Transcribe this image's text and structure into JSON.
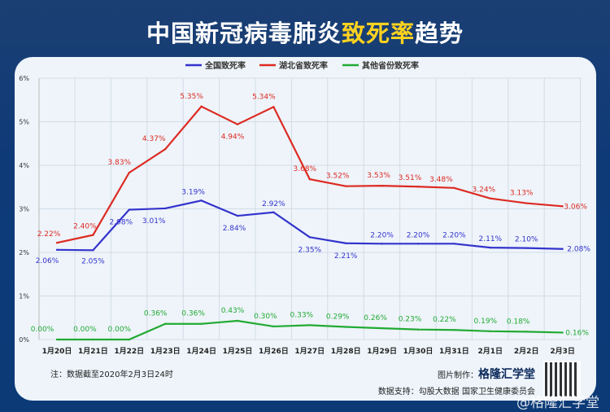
{
  "title": {
    "part1": "中国新冠病毒肺炎",
    "highlight": "致死率",
    "part2": "趋势"
  },
  "chart_data": {
    "type": "line",
    "categories": [
      "1月20日",
      "1月21日",
      "1月22日",
      "1月23日",
      "1月24日",
      "1月25日",
      "1月26日",
      "1月27日",
      "1月28日",
      "1月29日",
      "1月30日",
      "1月31日",
      "2月1日",
      "2月2日",
      "2月3日"
    ],
    "ylim": [
      0,
      6
    ],
    "yticks": [
      "0%",
      "1%",
      "2%",
      "3%",
      "4%",
      "5%",
      "6%"
    ],
    "grid": true,
    "legend_position": "top",
    "series": [
      {
        "name": "全国致死率",
        "color": "#3333cc",
        "values": [
          2.06,
          2.05,
          2.98,
          3.01,
          3.19,
          2.84,
          2.92,
          2.35,
          2.21,
          2.2,
          2.2,
          2.2,
          2.11,
          2.1,
          2.08
        ],
        "labels": [
          "2.06%",
          "2.05%",
          "2.98%",
          "3.01%",
          "3.19%",
          "2.84%",
          "2.92%",
          "2.35%",
          "2.21%",
          "2.20%",
          "2.20%",
          "2.20%",
          "2.11%",
          "2.10%",
          "2.08%"
        ]
      },
      {
        "name": "湖北省致死率",
        "color": "#dd2a22",
        "values": [
          2.22,
          2.4,
          3.83,
          4.37,
          5.35,
          4.94,
          5.34,
          3.68,
          3.52,
          3.53,
          3.51,
          3.48,
          3.24,
          3.13,
          3.06
        ],
        "labels": [
          "2.22%",
          "2.40%",
          "3.83%",
          "4.37%",
          "5.35%",
          "4.94%",
          "5.34%",
          "3.68%",
          "3.52%",
          "3.53%",
          "3.51%",
          "3.48%",
          "3.24%",
          "3.13%",
          "3.06%"
        ]
      },
      {
        "name": "其他省份致死率",
        "color": "#22aa33",
        "values": [
          0.0,
          0.0,
          0.0,
          0.36,
          0.36,
          0.43,
          0.3,
          0.33,
          0.29,
          0.26,
          0.23,
          0.22,
          0.19,
          0.18,
          0.16
        ],
        "labels": [
          "0.00%",
          "0.00%",
          "0.00%",
          "0.36%",
          "0.36%",
          "0.43%",
          "0.30%",
          "0.33%",
          "0.29%",
          "0.26%",
          "0.23%",
          "0.22%",
          "0.19%",
          "0.18%",
          "0.16%"
        ]
      }
    ]
  },
  "footer": {
    "note": "注：数据截至2020年2月3日24时",
    "credit_label": "图片制作：",
    "credit_brand": "格隆汇学堂",
    "source": "数据支持：勾股大数据 国家卫生健康委员会",
    "watermark": "@格隆汇学堂"
  }
}
